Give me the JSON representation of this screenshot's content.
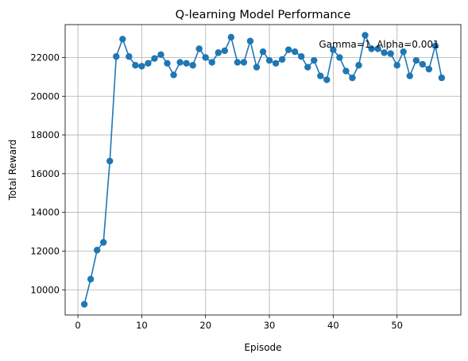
{
  "chart_data": {
    "type": "line",
    "title": "Q-learning Model Performance",
    "xlabel": "Episode",
    "ylabel": "Total Reward",
    "xlim": [
      -2,
      60
    ],
    "ylim": [
      8700,
      23700
    ],
    "xticks": [
      0,
      10,
      20,
      30,
      40,
      50
    ],
    "yticks": [
      10000,
      12000,
      14000,
      16000,
      18000,
      20000,
      22000
    ],
    "grid": true,
    "annotation": "Gamma=1, Alpha=0.001",
    "color": "#1f77b4",
    "series": [
      {
        "x": [
          1,
          2,
          3,
          4,
          5,
          6,
          7,
          8,
          9,
          10,
          11,
          12,
          13,
          14,
          15,
          16,
          17,
          18,
          19,
          20,
          21,
          22,
          23,
          24,
          25,
          26,
          27,
          28,
          29,
          30,
          31,
          32,
          33,
          34,
          35,
          36,
          37,
          38,
          39,
          40,
          41,
          42,
          43,
          44,
          45,
          46,
          47,
          48,
          49,
          50,
          51,
          52,
          53,
          54,
          55,
          56,
          57
        ],
        "values": [
          9250,
          10550,
          12050,
          12450,
          16650,
          22050,
          22950,
          22050,
          21600,
          21550,
          21700,
          21950,
          22150,
          21700,
          21100,
          21750,
          21700,
          21600,
          22450,
          22000,
          21750,
          22250,
          22350,
          23050,
          21750,
          21750,
          22850,
          21500,
          22300,
          21850,
          21700,
          21900,
          22400,
          22300,
          22050,
          21500,
          21850,
          21050,
          20850,
          22400,
          22000,
          21300,
          20950,
          21600,
          23150,
          22450,
          22450,
          22250,
          22200,
          21600,
          22300,
          21050,
          21850,
          21650,
          21400,
          22600,
          20950
        ]
      }
    ]
  }
}
